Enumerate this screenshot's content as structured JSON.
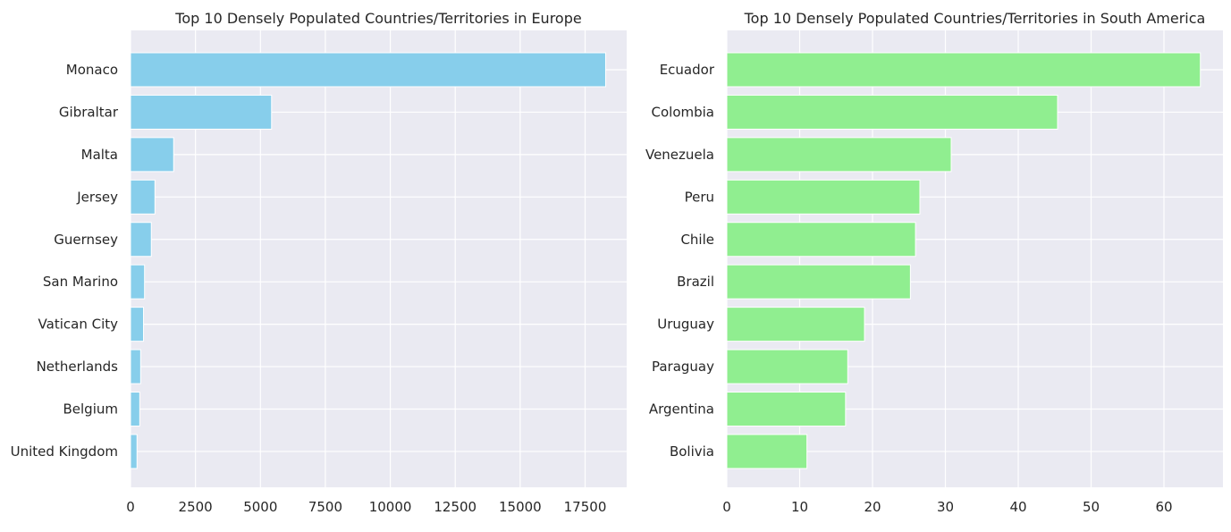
{
  "chart_data": [
    {
      "type": "bar",
      "orientation": "horizontal",
      "title": "Top 10 Densely Populated Countries/Territories in Europe",
      "categories": [
        "Monaco",
        "Gibraltar",
        "Malta",
        "Jersey",
        "Guernsey",
        "San Marino",
        "Vatican City",
        "Netherlands",
        "Belgium",
        "United Kingdom"
      ],
      "values": [
        18290,
        5430,
        1660,
        940,
        800,
        540,
        500,
        390,
        355,
        250
      ],
      "xlim": [
        0,
        19100
      ],
      "xticks": [
        0,
        2500,
        5000,
        7500,
        10000,
        12500,
        15000,
        17500
      ],
      "xlabel": "",
      "ylabel": "",
      "color": "#87ceeb",
      "grid": true
    },
    {
      "type": "bar",
      "orientation": "horizontal",
      "title": "Top 10 Densely Populated Countries/Territories in South America",
      "categories": [
        "Ecuador",
        "Colombia",
        "Venezuela",
        "Peru",
        "Chile",
        "Brazil",
        "Uruguay",
        "Paraguay",
        "Argentina",
        "Bolivia"
      ],
      "values": [
        65.0,
        45.4,
        30.8,
        26.5,
        25.9,
        25.2,
        18.9,
        16.6,
        16.3,
        11.0
      ],
      "xlim": [
        0,
        68.1
      ],
      "xticks": [
        0,
        10,
        20,
        30,
        40,
        50,
        60
      ],
      "xlabel": "",
      "ylabel": "",
      "color": "#90ee90",
      "grid": true
    }
  ]
}
